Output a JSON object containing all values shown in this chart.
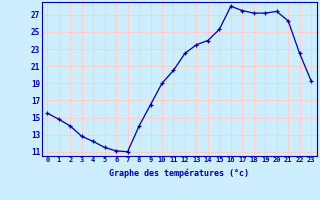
{
  "hours": [
    0,
    1,
    2,
    3,
    4,
    5,
    6,
    7,
    8,
    9,
    10,
    11,
    12,
    13,
    14,
    15,
    16,
    17,
    18,
    19,
    20,
    21,
    22,
    23
  ],
  "temperatures": [
    15.5,
    14.8,
    14.0,
    12.8,
    12.2,
    11.5,
    11.1,
    11.0,
    14.0,
    16.5,
    19.0,
    20.5,
    22.5,
    23.5,
    24.0,
    25.3,
    28.0,
    27.5,
    27.2,
    27.2,
    27.4,
    26.3,
    22.5,
    19.3
  ],
  "xlabel": "Graphe des températures (°c)",
  "bg_color": "#cceeff",
  "grid_color": "#ffcccc",
  "line_color": "#0000aa",
  "marker_color": "#0000aa",
  "text_color": "#0000aa",
  "ylim": [
    10.5,
    28.5
  ],
  "yticks": [
    11,
    13,
    15,
    17,
    19,
    21,
    23,
    25,
    27
  ],
  "xtick_labels": [
    "0",
    "1",
    "2",
    "3",
    "4",
    "5",
    "6",
    "7",
    "8",
    "9",
    "10",
    "11",
    "12",
    "13",
    "14",
    "15",
    "16",
    "17",
    "18",
    "19",
    "20",
    "21",
    "22",
    "23"
  ],
  "figsize": [
    3.2,
    2.0
  ],
  "dpi": 100
}
